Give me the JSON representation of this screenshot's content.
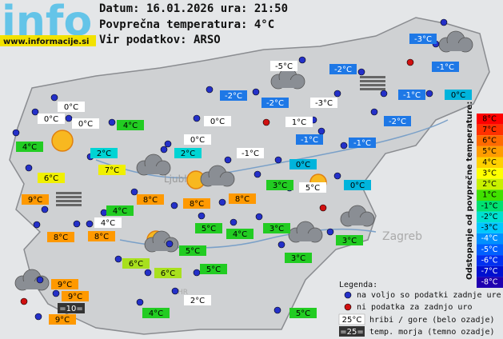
{
  "header": {
    "logo": "info",
    "site": "www.informacije.si",
    "date": "Datum: 16.01.2026 ura: 21:50",
    "average": "Povprečna temperatura: 4°C",
    "source": "Vir podatkov: ARSO"
  },
  "map": {
    "places": [
      "Ljubljana",
      "Zagreb",
      "HR"
    ],
    "stations": [
      {
        "label": "-3°C",
        "color": "#1e78e6"
      },
      {
        "label": "-5°C",
        "color": "#ffffff"
      },
      {
        "label": "-2°C",
        "color": "#1e78e6"
      },
      {
        "label": "-1°C",
        "color": "#1e78e6"
      },
      {
        "label": "-2°C",
        "color": "#1e78e6"
      },
      {
        "label": "-2°C",
        "color": "#1e78e6"
      },
      {
        "label": "-3°C",
        "color": "#ffffff"
      },
      {
        "label": "-1°C",
        "color": "#1e78e6"
      },
      {
        "label": "0°C",
        "color": "#00b4dc"
      },
      {
        "label": "0°C",
        "color": "#ffffff"
      },
      {
        "label": "0°C",
        "color": "#ffffff"
      },
      {
        "label": "0°C",
        "color": "#ffffff"
      },
      {
        "label": "4°C",
        "color": "#22cc22"
      },
      {
        "label": "0°C",
        "color": "#ffffff"
      },
      {
        "label": "1°C",
        "color": "#ffffff"
      },
      {
        "label": "-2°C",
        "color": "#1e78e6"
      },
      {
        "label": "4°C",
        "color": "#22cc22"
      },
      {
        "label": "-1°C",
        "color": "#1e78e6"
      },
      {
        "label": "-1°C",
        "color": "#1e78e6"
      },
      {
        "label": "2°C",
        "color": "#00d4d4"
      },
      {
        "label": "0°C",
        "color": "#ffffff"
      },
      {
        "label": "2°C",
        "color": "#00d4d4"
      },
      {
        "label": "-1°C",
        "color": "#ffffff"
      },
      {
        "label": "0°C",
        "color": "#00b4dc"
      },
      {
        "label": "7°C",
        "color": "#f0f000"
      },
      {
        "label": "6°C",
        "color": "#f0f000"
      },
      {
        "label": "3°C",
        "color": "#22cc22"
      },
      {
        "label": "5°C",
        "color": "#ffffff"
      },
      {
        "label": "0°C",
        "color": "#00b4dc"
      },
      {
        "label": "9°C",
        "color": "#ff9900"
      },
      {
        "label": "8°C",
        "color": "#ff9900"
      },
      {
        "label": "8°C",
        "color": "#ff9900"
      },
      {
        "label": "8°C",
        "color": "#ff9900"
      },
      {
        "label": "4°C",
        "color": "#22cc22"
      },
      {
        "label": "4°C",
        "color": "#ffffff"
      },
      {
        "label": "8°C",
        "color": "#ff9900"
      },
      {
        "label": "8°C",
        "color": "#ff9900"
      },
      {
        "label": "5°C",
        "color": "#22cc22"
      },
      {
        "label": "4°C",
        "color": "#22cc22"
      },
      {
        "label": "3°C",
        "color": "#22cc22"
      },
      {
        "label": "3°C",
        "color": "#22cc22"
      },
      {
        "label": "5°C",
        "color": "#22cc22"
      },
      {
        "label": "3°C",
        "color": "#22cc22"
      },
      {
        "label": "6°C",
        "color": "#a8e01e"
      },
      {
        "label": "5°C",
        "color": "#22cc22"
      },
      {
        "label": "6°C",
        "color": "#a8e01e"
      },
      {
        "label": "9°C",
        "color": "#ff9900"
      },
      {
        "label": "9°C",
        "color": "#ff9900"
      },
      {
        "label": "=10=",
        "color": "#333333"
      },
      {
        "label": "9°C",
        "color": "#ff9900"
      },
      {
        "label": "2°C",
        "color": "#ffffff"
      },
      {
        "label": "4°C",
        "color": "#22cc22"
      },
      {
        "label": "5°C",
        "color": "#22cc22"
      }
    ]
  },
  "scale": {
    "title": "Odstopanje od povprečne temperature:",
    "steps": [
      {
        "label": "8°C",
        "color": "#ff0000"
      },
      {
        "label": "7°C",
        "color": "#ff3000"
      },
      {
        "label": "6°C",
        "color": "#ff6a00"
      },
      {
        "label": "5°C",
        "color": "#ff9c00"
      },
      {
        "label": "4°C",
        "color": "#ffd000"
      },
      {
        "label": "3°C",
        "color": "#ffff00"
      },
      {
        "label": "2°C",
        "color": "#c8f000"
      },
      {
        "label": "1°C",
        "color": "#40e000"
      },
      {
        "label": "-1°C",
        "color": "#00e070"
      },
      {
        "label": "-2°C",
        "color": "#00e0d0"
      },
      {
        "label": "-3°C",
        "color": "#00c8ff"
      },
      {
        "label": "-4°C",
        "color": "#0090ff"
      },
      {
        "label": "-5°C",
        "color": "#0060ff"
      },
      {
        "label": "-6°C",
        "color": "#0030f0"
      },
      {
        "label": "-7°C",
        "color": "#0010d0"
      },
      {
        "label": "-8°C",
        "color": "#2000b0"
      }
    ]
  },
  "legend": {
    "title": "Legenda:",
    "available": "na voljo so podatki zadnje ure",
    "missing": "ni podatka za zadnjo uro",
    "hill_sample": "25°C",
    "hill_text": "hribi / gore (belo ozadje)",
    "sea_sample": "=25=",
    "sea_text": "temp. morja (temno ozadje)"
  }
}
